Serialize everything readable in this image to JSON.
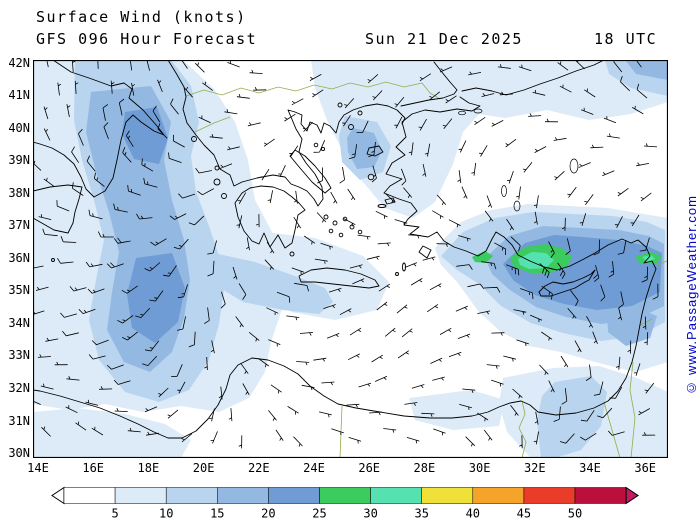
{
  "header": {
    "title": "Surface Wind (knots)",
    "subtitle": "GFS 096 Hour Forecast",
    "date": "Sun 21 Dec 2025",
    "time": "18 UTC"
  },
  "watermark": {
    "text": "© www.PassageWeather.com"
  },
  "map": {
    "lat_labels": [
      "42N",
      "41N",
      "40N",
      "39N",
      "38N",
      "37N",
      "36N",
      "35N",
      "34N",
      "33N",
      "32N",
      "31N",
      "30N"
    ],
    "lon_labels": [
      "14E",
      "16E",
      "18E",
      "20E",
      "22E",
      "24E",
      "26E",
      "28E",
      "30E",
      "32E",
      "34E",
      "36E"
    ]
  },
  "legend": {
    "values": [
      "5",
      "10",
      "15",
      "20",
      "25",
      "30",
      "35",
      "40",
      "45",
      "50"
    ],
    "colors": [
      "#ffffff",
      "#dcebf7",
      "#b9d4ee",
      "#93b9e3",
      "#6f9cd4",
      "#3bcb5f",
      "#55e2b0",
      "#f0e13a",
      "#f5a42b",
      "#ea3c28",
      "#bb0f3c"
    ],
    "underflow_color": "#ffffff",
    "overflow_color": "#c21a5e"
  },
  "colors": {
    "watermark": "#0000cc",
    "coastline": "#000000",
    "borders": "#8fae4a",
    "barbs": "#000000"
  }
}
